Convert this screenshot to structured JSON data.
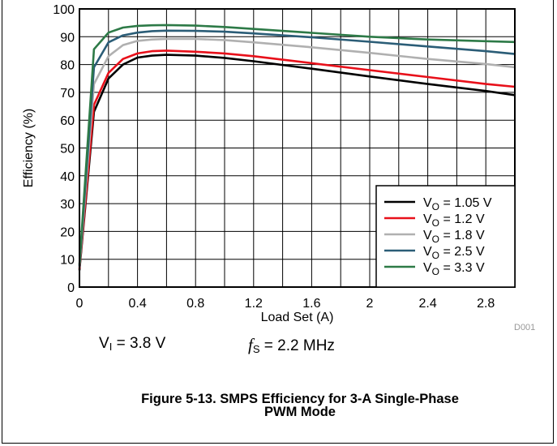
{
  "chart_data": {
    "type": "line",
    "xlabel": "Load Set (A)",
    "ylabel": "Efficiency (%)",
    "xlim": [
      0,
      3
    ],
    "ylim": [
      0,
      100
    ],
    "xticks": [
      "0",
      "0.4",
      "0.8",
      "1.2",
      "1.6",
      "2",
      "2.4",
      "2.8"
    ],
    "yticks": [
      "0",
      "10",
      "20",
      "30",
      "40",
      "50",
      "60",
      "70",
      "80",
      "90",
      "100"
    ],
    "grid": true,
    "legend_position": "bottom-right",
    "x": [
      0,
      0.1,
      0.2,
      0.3,
      0.4,
      0.5,
      0.6,
      0.8,
      1.0,
      1.2,
      1.6,
      2.0,
      2.4,
      2.8,
      3.0
    ],
    "series": [
      {
        "name": "VO = 1.05 V",
        "label_main": "V",
        "label_sub": "O",
        "label_rest": " = 1.05 V",
        "color": "#000000",
        "values": [
          6,
          63,
          75,
          80,
          82.5,
          83.2,
          83.5,
          83.2,
          82.4,
          81.2,
          78.5,
          75.7,
          73,
          70.5,
          69
        ]
      },
      {
        "name": "VO = 1.2 V",
        "label_main": "V",
        "label_sub": "O",
        "label_rest": " = 1.2 V",
        "color": "#e8101a",
        "values": [
          6.5,
          65.5,
          77,
          82,
          84,
          84.8,
          85,
          84.6,
          84,
          83,
          80.5,
          78,
          75.5,
          73,
          72
        ]
      },
      {
        "name": "VO = 1.8 V",
        "label_main": "V",
        "label_sub": "O",
        "label_rest": " = 1.8 V",
        "color": "#b0b0b0",
        "values": [
          7,
          73,
          83,
          87,
          88.5,
          89,
          89.2,
          89.2,
          88.8,
          88,
          86.2,
          84.2,
          82,
          80.2,
          79
        ]
      },
      {
        "name": "VO = 2.5 V",
        "label_main": "V",
        "label_sub": "O",
        "label_rest": " = 2.5 V",
        "color": "#2b5d77",
        "values": [
          7.5,
          79,
          88,
          90.5,
          91.5,
          92,
          92.2,
          92.1,
          91.8,
          91.2,
          89.8,
          88.2,
          86.5,
          84.8,
          83.8
        ]
      },
      {
        "name": "VO = 3.3 V",
        "label_main": "V",
        "label_sub": "O",
        "label_rest": " = 3.3 V",
        "color": "#2d7a47",
        "values": [
          8,
          85.5,
          91.5,
          93.3,
          93.9,
          94.1,
          94.2,
          94,
          93.5,
          92.8,
          91.4,
          90,
          89,
          88.4,
          88.1
        ]
      }
    ]
  },
  "conditions": {
    "vi_main": "V",
    "vi_sub": "I",
    "vi_rest": " = 3.8 V",
    "fs_main": "f",
    "fs_sub": "S",
    "fs_rest": " = 2.2 MHz"
  },
  "plot_id": "D001",
  "caption": {
    "line1": "Figure 5-13. SMPS Efficiency for 3-A Single-Phase",
    "line2": "PWM Mode"
  }
}
